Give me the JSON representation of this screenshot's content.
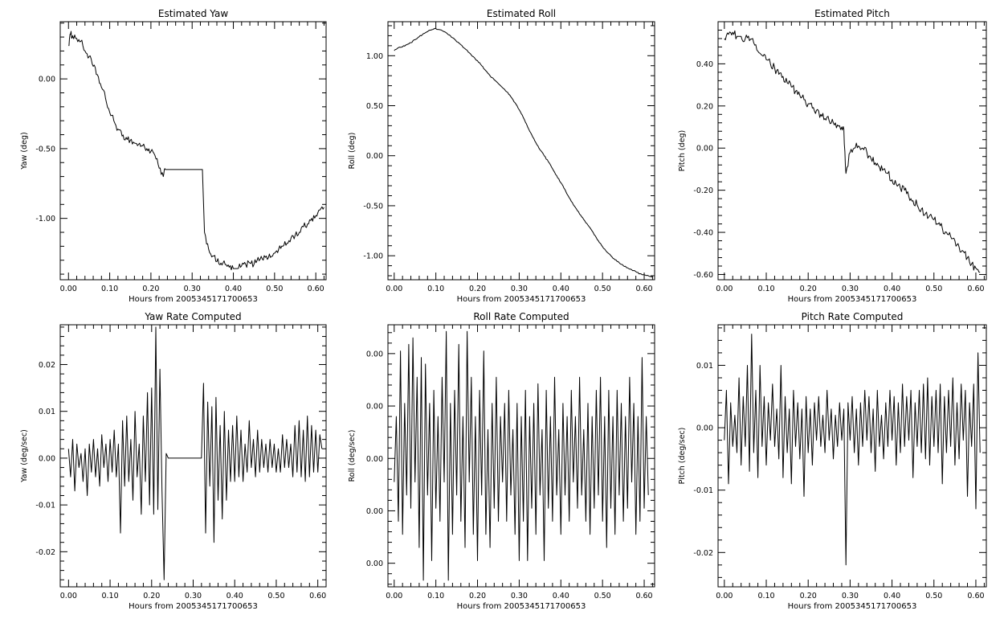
{
  "chart_data": [
    {
      "id": "yaw",
      "type": "line",
      "title": "Estimated Yaw",
      "xlabel": "Hours from 2005345171700653",
      "ylabel": "Yaw (deg)",
      "xlim": [
        -0.02,
        0.625
      ],
      "ylim": [
        -1.44,
        0.41
      ],
      "xticks": [
        "0.00",
        "0.10",
        "0.20",
        "0.30",
        "0.40",
        "0.50",
        "0.60"
      ],
      "yticks": [
        "0.00",
        "-0.50",
        "-1.00"
      ],
      "grid": false,
      "legend": "none",
      "noise": 0.025,
      "x": [
        0.0,
        0.005,
        0.01,
        0.02,
        0.03,
        0.04,
        0.05,
        0.06,
        0.07,
        0.08,
        0.09,
        0.1,
        0.11,
        0.12,
        0.13,
        0.14,
        0.15,
        0.16,
        0.17,
        0.18,
        0.19,
        0.2,
        0.21,
        0.22,
        0.23,
        0.235,
        0.3,
        0.32,
        0.325,
        0.33,
        0.34,
        0.35,
        0.36,
        0.37,
        0.38,
        0.39,
        0.4,
        0.41,
        0.42,
        0.43,
        0.44,
        0.45,
        0.46,
        0.47,
        0.48,
        0.49,
        0.5,
        0.51,
        0.52,
        0.53,
        0.54,
        0.55,
        0.56,
        0.57,
        0.58,
        0.59,
        0.6,
        0.61,
        0.62
      ],
      "y": [
        0.24,
        0.32,
        0.31,
        0.29,
        0.27,
        0.2,
        0.16,
        0.09,
        0.03,
        -0.06,
        -0.14,
        -0.24,
        -0.3,
        -0.36,
        -0.41,
        -0.42,
        -0.44,
        -0.46,
        -0.47,
        -0.48,
        -0.5,
        -0.52,
        -0.55,
        -0.64,
        -0.7,
        -0.65,
        -0.65,
        -0.65,
        -0.65,
        -1.1,
        -1.22,
        -1.27,
        -1.31,
        -1.32,
        -1.33,
        -1.35,
        -1.36,
        -1.36,
        -1.34,
        -1.33,
        -1.32,
        -1.33,
        -1.28,
        -1.29,
        -1.27,
        -1.28,
        -1.25,
        -1.22,
        -1.2,
        -1.18,
        -1.14,
        -1.12,
        -1.1,
        -1.06,
        -1.04,
        -1.0,
        -0.98,
        -0.94,
        -0.92
      ]
    },
    {
      "id": "roll",
      "type": "line",
      "title": "Estimated Roll",
      "xlabel": "Hours from 2005345171700653",
      "ylabel": "Roll (deg)",
      "xlim": [
        -0.015,
        0.625
      ],
      "ylim": [
        -1.24,
        1.34
      ],
      "xticks": [
        "0.00",
        "0.10",
        "0.20",
        "0.30",
        "0.40",
        "0.50",
        "0.60"
      ],
      "yticks": [
        "1.00",
        "0.50",
        "0.00",
        "-0.50",
        "-1.00"
      ],
      "grid": false,
      "legend": "none",
      "noise": 0.006,
      "x": [
        0.0,
        0.01,
        0.02,
        0.03,
        0.04,
        0.05,
        0.06,
        0.07,
        0.08,
        0.09,
        0.1,
        0.11,
        0.12,
        0.13,
        0.14,
        0.15,
        0.16,
        0.17,
        0.18,
        0.19,
        0.2,
        0.21,
        0.22,
        0.23,
        0.24,
        0.25,
        0.26,
        0.27,
        0.28,
        0.29,
        0.3,
        0.31,
        0.32,
        0.33,
        0.34,
        0.35,
        0.36,
        0.37,
        0.38,
        0.39,
        0.4,
        0.41,
        0.42,
        0.43,
        0.44,
        0.45,
        0.46,
        0.47,
        0.48,
        0.49,
        0.5,
        0.51,
        0.52,
        0.53,
        0.54,
        0.55,
        0.56,
        0.57,
        0.58,
        0.59,
        0.6,
        0.61,
        0.62
      ],
      "y": [
        1.05,
        1.08,
        1.09,
        1.11,
        1.13,
        1.16,
        1.19,
        1.22,
        1.24,
        1.26,
        1.27,
        1.26,
        1.24,
        1.21,
        1.18,
        1.14,
        1.11,
        1.07,
        1.03,
        0.99,
        0.95,
        0.9,
        0.85,
        0.8,
        0.76,
        0.72,
        0.68,
        0.64,
        0.59,
        0.53,
        0.46,
        0.38,
        0.29,
        0.21,
        0.13,
        0.06,
        0.0,
        -0.06,
        -0.13,
        -0.2,
        -0.27,
        -0.34,
        -0.42,
        -0.49,
        -0.55,
        -0.61,
        -0.67,
        -0.72,
        -0.79,
        -0.85,
        -0.91,
        -0.96,
        -1.0,
        -1.04,
        -1.07,
        -1.1,
        -1.12,
        -1.14,
        -1.16,
        -1.18,
        -1.19,
        -1.2,
        -1.21
      ]
    },
    {
      "id": "pitch",
      "type": "line",
      "title": "Estimated Pitch",
      "xlabel": "Hours from 2005345171700653",
      "ylabel": "Pitch (deg)",
      "xlim": [
        -0.015,
        0.625
      ],
      "ylim": [
        -0.625,
        0.6
      ],
      "xticks": [
        "0.00",
        "0.10",
        "0.20",
        "0.30",
        "0.40",
        "0.50",
        "0.60"
      ],
      "yticks": [
        "0.40",
        "0.20",
        "0.00",
        "-0.20",
        "-0.40",
        "-0.60"
      ],
      "grid": false,
      "legend": "none",
      "noise": 0.02,
      "x": [
        0.0,
        0.01,
        0.02,
        0.03,
        0.04,
        0.05,
        0.06,
        0.07,
        0.08,
        0.09,
        0.1,
        0.11,
        0.12,
        0.13,
        0.14,
        0.15,
        0.16,
        0.17,
        0.18,
        0.19,
        0.2,
        0.21,
        0.22,
        0.23,
        0.24,
        0.25,
        0.26,
        0.27,
        0.28,
        0.285,
        0.29,
        0.3,
        0.31,
        0.32,
        0.33,
        0.34,
        0.35,
        0.36,
        0.37,
        0.38,
        0.39,
        0.4,
        0.41,
        0.42,
        0.43,
        0.44,
        0.45,
        0.46,
        0.47,
        0.48,
        0.49,
        0.5,
        0.51,
        0.52,
        0.53,
        0.54,
        0.55,
        0.56,
        0.57,
        0.58,
        0.59,
        0.6,
        0.61
      ],
      "y": [
        0.52,
        0.54,
        0.55,
        0.53,
        0.53,
        0.52,
        0.51,
        0.5,
        0.46,
        0.44,
        0.42,
        0.4,
        0.38,
        0.35,
        0.34,
        0.31,
        0.29,
        0.27,
        0.25,
        0.23,
        0.21,
        0.19,
        0.18,
        0.16,
        0.14,
        0.13,
        0.12,
        0.11,
        0.1,
        0.09,
        -0.12,
        -0.02,
        0.0,
        0.01,
        0.0,
        -0.02,
        -0.05,
        -0.07,
        -0.09,
        -0.1,
        -0.12,
        -0.15,
        -0.17,
        -0.19,
        -0.2,
        -0.23,
        -0.25,
        -0.27,
        -0.29,
        -0.31,
        -0.32,
        -0.34,
        -0.36,
        -0.38,
        -0.4,
        -0.42,
        -0.44,
        -0.47,
        -0.49,
        -0.52,
        -0.55,
        -0.57,
        -0.59
      ]
    },
    {
      "id": "yawrate",
      "type": "line",
      "title": "Yaw Rate Computed",
      "xlabel": "Hours from 2005345171700653",
      "ylabel": "Yaw (deg/sec)",
      "xlim": [
        -0.02,
        0.62
      ],
      "ylim": [
        -0.0275,
        0.0285
      ],
      "xticks": [
        "0.00",
        "0.10",
        "0.20",
        "0.30",
        "0.40",
        "0.50",
        "0.60"
      ],
      "yticks": [
        "0.02",
        "0.01",
        "0.00",
        "-0.01",
        "-0.02"
      ],
      "grid": false,
      "legend": "none",
      "x": [
        0.0,
        0.005,
        0.01,
        0.015,
        0.02,
        0.025,
        0.03,
        0.035,
        0.04,
        0.045,
        0.05,
        0.055,
        0.06,
        0.065,
        0.07,
        0.075,
        0.08,
        0.085,
        0.09,
        0.095,
        0.1,
        0.105,
        0.11,
        0.115,
        0.12,
        0.125,
        0.13,
        0.135,
        0.14,
        0.145,
        0.15,
        0.155,
        0.16,
        0.165,
        0.17,
        0.175,
        0.18,
        0.185,
        0.19,
        0.195,
        0.2,
        0.205,
        0.21,
        0.215,
        0.22,
        0.225,
        0.23,
        0.235,
        0.24,
        0.32,
        0.325,
        0.33,
        0.335,
        0.34,
        0.345,
        0.35,
        0.355,
        0.36,
        0.365,
        0.37,
        0.375,
        0.38,
        0.385,
        0.39,
        0.395,
        0.4,
        0.405,
        0.41,
        0.415,
        0.42,
        0.425,
        0.43,
        0.435,
        0.44,
        0.445,
        0.45,
        0.455,
        0.46,
        0.465,
        0.47,
        0.475,
        0.48,
        0.485,
        0.49,
        0.495,
        0.5,
        0.505,
        0.51,
        0.515,
        0.52,
        0.525,
        0.53,
        0.535,
        0.54,
        0.545,
        0.55,
        0.555,
        0.56,
        0.565,
        0.57,
        0.575,
        0.58,
        0.585,
        0.59,
        0.595,
        0.6,
        0.605,
        0.61
      ],
      "y": [
        0.002,
        -0.004,
        0.004,
        -0.007,
        0.003,
        -0.002,
        0.001,
        -0.005,
        0.002,
        -0.008,
        0.003,
        -0.003,
        0.004,
        -0.004,
        0.002,
        -0.006,
        0.005,
        -0.002,
        0.003,
        -0.005,
        0.004,
        -0.003,
        0.006,
        -0.004,
        0.003,
        -0.016,
        0.008,
        -0.006,
        0.009,
        -0.005,
        0.004,
        -0.009,
        0.01,
        -0.004,
        0.003,
        -0.012,
        0.009,
        -0.005,
        0.014,
        -0.01,
        0.015,
        -0.012,
        0.028,
        -0.011,
        0.019,
        -0.007,
        -0.026,
        0.001,
        0.0,
        0.0,
        0.016,
        -0.016,
        0.012,
        -0.006,
        0.011,
        -0.018,
        0.013,
        -0.009,
        0.007,
        -0.013,
        0.01,
        -0.009,
        0.006,
        -0.005,
        0.007,
        -0.005,
        0.009,
        -0.004,
        0.006,
        -0.005,
        0.003,
        -0.003,
        0.008,
        -0.002,
        0.004,
        -0.004,
        0.006,
        -0.003,
        0.004,
        -0.002,
        0.003,
        -0.003,
        0.004,
        -0.002,
        0.003,
        -0.003,
        0.002,
        -0.003,
        0.005,
        -0.002,
        0.004,
        -0.002,
        0.003,
        -0.004,
        0.007,
        -0.003,
        0.008,
        -0.004,
        0.006,
        -0.005,
        0.009,
        -0.004,
        0.007,
        -0.003,
        0.006,
        -0.003,
        0.005,
        0.002
      ]
    },
    {
      "id": "rollrate",
      "type": "line",
      "title": "Roll Rate Computed",
      "xlabel": "Hours from 2005345171700653",
      "ylabel": "Roll (deg/sec)",
      "xlim": [
        -0.015,
        0.625
      ],
      "ylim": [
        -1.0,
        1.0
      ],
      "xticks": [
        "0.00",
        "0.10",
        "0.20",
        "0.30",
        "0.40",
        "0.50",
        "0.60"
      ],
      "yticks": [
        "0.00",
        "0.00",
        "0.00",
        "0.00",
        "0.00"
      ],
      "ytick_positions": [
        0.78,
        0.38,
        -0.02,
        -0.42,
        -0.82
      ],
      "grid": false,
      "legend": "none",
      "x": [
        0.0,
        0.005,
        0.01,
        0.015,
        0.02,
        0.025,
        0.03,
        0.035,
        0.04,
        0.045,
        0.05,
        0.055,
        0.06,
        0.065,
        0.07,
        0.075,
        0.08,
        0.085,
        0.09,
        0.095,
        0.1,
        0.105,
        0.11,
        0.115,
        0.12,
        0.125,
        0.13,
        0.135,
        0.14,
        0.145,
        0.15,
        0.155,
        0.16,
        0.165,
        0.17,
        0.175,
        0.18,
        0.185,
        0.19,
        0.195,
        0.2,
        0.205,
        0.21,
        0.215,
        0.22,
        0.225,
        0.23,
        0.235,
        0.24,
        0.245,
        0.25,
        0.255,
        0.26,
        0.265,
        0.27,
        0.275,
        0.28,
        0.285,
        0.29,
        0.295,
        0.3,
        0.305,
        0.31,
        0.315,
        0.32,
        0.325,
        0.33,
        0.335,
        0.34,
        0.345,
        0.35,
        0.355,
        0.36,
        0.365,
        0.37,
        0.375,
        0.38,
        0.385,
        0.39,
        0.395,
        0.4,
        0.405,
        0.41,
        0.415,
        0.42,
        0.425,
        0.43,
        0.435,
        0.44,
        0.445,
        0.45,
        0.455,
        0.46,
        0.465,
        0.47,
        0.475,
        0.48,
        0.485,
        0.49,
        0.495,
        0.5,
        0.505,
        0.51,
        0.515,
        0.52,
        0.525,
        0.53,
        0.535,
        0.54,
        0.545,
        0.55,
        0.555,
        0.56,
        0.565,
        0.57,
        0.575,
        0.58,
        0.585,
        0.59,
        0.595,
        0.6,
        0.605,
        0.61
      ],
      "y": [
        -0.2,
        0.3,
        -0.5,
        0.8,
        -0.6,
        0.4,
        -0.3,
        0.85,
        -0.4,
        0.9,
        -0.2,
        0.6,
        -0.7,
        0.75,
        -0.95,
        0.7,
        -0.3,
        0.4,
        -0.8,
        0.5,
        -0.4,
        0.3,
        -0.5,
        0.6,
        -0.2,
        0.95,
        -0.95,
        0.4,
        -0.6,
        0.5,
        -0.3,
        0.85,
        -0.5,
        0.3,
        -0.7,
        0.95,
        -0.2,
        0.6,
        -0.6,
        0.3,
        -0.8,
        0.5,
        -0.3,
        0.8,
        -0.6,
        0.2,
        -0.7,
        0.4,
        -0.4,
        0.6,
        -0.5,
        0.3,
        -0.2,
        0.4,
        -0.5,
        0.5,
        -0.3,
        0.2,
        -0.6,
        0.4,
        -0.8,
        0.3,
        -0.5,
        0.5,
        -0.8,
        0.3,
        -0.4,
        0.4,
        -0.6,
        0.55,
        -0.3,
        0.2,
        -0.8,
        0.5,
        -0.4,
        0.3,
        -0.5,
        0.6,
        -0.3,
        0.2,
        -0.6,
        0.4,
        -0.3,
        0.3,
        -0.5,
        0.5,
        -0.2,
        0.3,
        -0.4,
        0.6,
        -0.3,
        0.2,
        -0.5,
        0.4,
        -0.6,
        0.3,
        -0.4,
        0.5,
        -0.3,
        0.6,
        -0.5,
        0.3,
        -0.7,
        0.5,
        -0.4,
        0.3,
        -0.6,
        0.5,
        -0.3,
        0.4,
        -0.5,
        0.3,
        -0.4,
        0.6,
        -0.2,
        0.4,
        -0.6,
        0.3,
        -0.5,
        0.75,
        -0.4,
        0.3,
        -0.3
      ]
    },
    {
      "id": "pitchrate",
      "type": "line",
      "title": "Pitch Rate Computed",
      "xlabel": "Hours from 2005345171700653",
      "ylabel": "Pitch (deg/sec)",
      "xlim": [
        -0.015,
        0.625
      ],
      "ylim": [
        -0.0255,
        0.0165
      ],
      "xticks": [
        "0.00",
        "0.10",
        "0.20",
        "0.30",
        "0.40",
        "0.50",
        "0.60"
      ],
      "yticks": [
        "0.01",
        "0.00",
        "-0.01",
        "-0.02"
      ],
      "grid": false,
      "legend": "none",
      "x": [
        0.0,
        0.005,
        0.01,
        0.015,
        0.02,
        0.025,
        0.03,
        0.035,
        0.04,
        0.045,
        0.05,
        0.055,
        0.06,
        0.065,
        0.07,
        0.075,
        0.08,
        0.085,
        0.09,
        0.095,
        0.1,
        0.105,
        0.11,
        0.115,
        0.12,
        0.125,
        0.13,
        0.135,
        0.14,
        0.145,
        0.15,
        0.155,
        0.16,
        0.165,
        0.17,
        0.175,
        0.18,
        0.185,
        0.19,
        0.195,
        0.2,
        0.205,
        0.21,
        0.215,
        0.22,
        0.225,
        0.23,
        0.235,
        0.24,
        0.245,
        0.25,
        0.255,
        0.26,
        0.265,
        0.27,
        0.275,
        0.28,
        0.285,
        0.29,
        0.295,
        0.3,
        0.305,
        0.31,
        0.315,
        0.32,
        0.325,
        0.33,
        0.335,
        0.34,
        0.345,
        0.35,
        0.355,
        0.36,
        0.365,
        0.37,
        0.375,
        0.38,
        0.385,
        0.39,
        0.395,
        0.4,
        0.405,
        0.41,
        0.415,
        0.42,
        0.425,
        0.43,
        0.435,
        0.44,
        0.445,
        0.45,
        0.455,
        0.46,
        0.465,
        0.47,
        0.475,
        0.48,
        0.485,
        0.49,
        0.495,
        0.5,
        0.505,
        0.51,
        0.515,
        0.52,
        0.525,
        0.53,
        0.535,
        0.54,
        0.545,
        0.55,
        0.555,
        0.56,
        0.565,
        0.57,
        0.575,
        0.58,
        0.585,
        0.59,
        0.595,
        0.6,
        0.605,
        0.61
      ],
      "y": [
        -0.002,
        0.006,
        -0.009,
        0.004,
        -0.003,
        0.002,
        -0.004,
        0.008,
        -0.006,
        0.005,
        -0.003,
        0.01,
        -0.007,
        0.015,
        -0.004,
        0.006,
        -0.008,
        0.01,
        -0.003,
        0.005,
        -0.006,
        0.004,
        -0.002,
        0.007,
        -0.003,
        0.003,
        -0.005,
        0.01,
        -0.008,
        0.005,
        -0.004,
        0.003,
        -0.009,
        0.006,
        -0.003,
        0.004,
        -0.005,
        0.003,
        -0.011,
        0.005,
        -0.004,
        0.003,
        -0.006,
        0.004,
        -0.002,
        0.005,
        -0.003,
        0.002,
        -0.004,
        0.006,
        -0.002,
        0.003,
        -0.005,
        0.002,
        -0.003,
        0.004,
        -0.002,
        0.003,
        -0.022,
        0.004,
        -0.002,
        0.005,
        -0.004,
        0.003,
        -0.006,
        0.004,
        -0.003,
        0.006,
        -0.002,
        0.005,
        -0.004,
        0.003,
        -0.007,
        0.006,
        -0.003,
        0.002,
        -0.005,
        0.004,
        -0.003,
        0.006,
        -0.002,
        0.005,
        -0.006,
        0.004,
        -0.004,
        0.007,
        -0.003,
        0.005,
        -0.002,
        0.006,
        -0.008,
        0.004,
        -0.003,
        0.006,
        -0.004,
        0.007,
        -0.005,
        0.008,
        -0.006,
        0.005,
        -0.003,
        0.006,
        -0.004,
        0.007,
        -0.009,
        0.005,
        -0.004,
        0.006,
        -0.003,
        0.008,
        -0.006,
        0.004,
        -0.005,
        0.007,
        -0.002,
        0.006,
        -0.011,
        0.004,
        -0.003,
        0.007,
        -0.013,
        0.012,
        -0.004
      ]
    }
  ]
}
